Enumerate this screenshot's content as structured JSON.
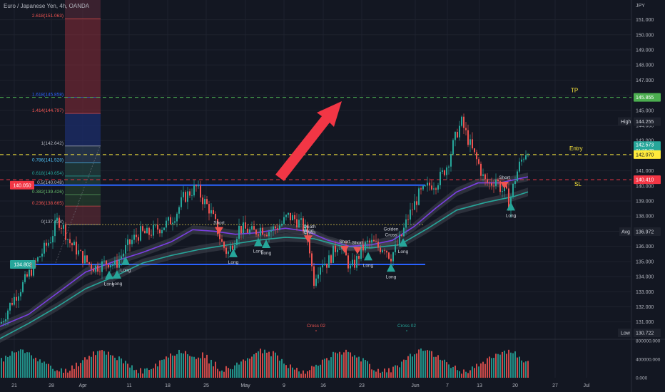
{
  "header": {
    "title": "Euro / Japanese Yen, 4h, OANDA",
    "currency": "JPY"
  },
  "colors": {
    "background": "#131722",
    "grid": "#1e222d",
    "up": "#26a69a",
    "down": "#ef5350",
    "blue_line": "#2962ff",
    "fast_ma": "#26a69a",
    "slow_ma": "#7b3fe4",
    "tp": "#4caf50",
    "entry": "#ffeb3b",
    "sl": "#f23645",
    "arrow": "#f23645"
  },
  "chart_data": {
    "type": "line",
    "title": "Euro / Japanese Yen, 4h, OANDA",
    "xlabel": "",
    "ylabel": "",
    "y_unit": "JPY",
    "ylim": [
      129.9,
      152.3
    ],
    "grid": true,
    "x_ticks": [
      "21",
      "28",
      "Apr",
      "11",
      "18",
      "25",
      "May",
      "9",
      "16",
      "23",
      "Jun",
      "7",
      "13",
      "20",
      "27",
      "Jul"
    ],
    "y_ticks": [
      "151.000",
      "150.000",
      "149.000",
      "148.000",
      "147.000",
      "146.000",
      "145.000",
      "144.000",
      "143.000",
      "142.000",
      "141.000",
      "140.000",
      "139.000",
      "138.000",
      "137.000",
      "136.000",
      "135.000",
      "134.000",
      "133.000",
      "132.000",
      "131.000"
    ],
    "price_path": [
      [
        0,
        130.9
      ],
      [
        15,
        132.3
      ],
      [
        30,
        133.4
      ],
      [
        45,
        134.6
      ],
      [
        58,
        135.6
      ],
      [
        70,
        136.5
      ],
      [
        80,
        137.8
      ],
      [
        88,
        137.2
      ],
      [
        96,
        136.3
      ],
      [
        104,
        135.9
      ],
      [
        112,
        135.4
      ],
      [
        122,
        134.9
      ],
      [
        132,
        134.6
      ],
      [
        142,
        134.8
      ],
      [
        152,
        135.0
      ],
      [
        160,
        134.7
      ],
      [
        168,
        135.3
      ],
      [
        176,
        135.9
      ],
      [
        186,
        136.5
      ],
      [
        196,
        136.9
      ],
      [
        206,
        136.8
      ],
      [
        216,
        137.1
      ],
      [
        226,
        137.3
      ],
      [
        236,
        137.6
      ],
      [
        246,
        138.2
      ],
      [
        256,
        139.2
      ],
      [
        266,
        139.6
      ],
      [
        274,
        139.9
      ],
      [
        282,
        139.2
      ],
      [
        292,
        138.5
      ],
      [
        300,
        137.6
      ],
      [
        310,
        136.2
      ],
      [
        318,
        135.5
      ],
      [
        326,
        136.3
      ],
      [
        334,
        137.2
      ],
      [
        344,
        137.1
      ],
      [
        354,
        136.9
      ],
      [
        364,
        137.2
      ],
      [
        374,
        137.0
      ],
      [
        384,
        137.2
      ],
      [
        394,
        137.5
      ],
      [
        402,
        138.0
      ],
      [
        412,
        137.8
      ],
      [
        420,
        137.5
      ],
      [
        428,
        137.0
      ],
      [
        434,
        135.6
      ],
      [
        438,
        133.6
      ],
      [
        443,
        134.4
      ],
      [
        450,
        135.0
      ],
      [
        458,
        134.9
      ],
      [
        466,
        135.6
      ],
      [
        474,
        136.3
      ],
      [
        482,
        135.5
      ],
      [
        490,
        134.5
      ],
      [
        498,
        135.0
      ],
      [
        506,
        135.8
      ],
      [
        514,
        136.2
      ],
      [
        522,
        136.2
      ],
      [
        530,
        135.9
      ],
      [
        538,
        136.0
      ],
      [
        546,
        135.3
      ],
      [
        554,
        135.9
      ],
      [
        562,
        136.7
      ],
      [
        570,
        137.8
      ],
      [
        578,
        138.6
      ],
      [
        586,
        139.4
      ],
      [
        594,
        139.7
      ],
      [
        602,
        140.1
      ],
      [
        610,
        140.2
      ],
      [
        618,
        140.7
      ],
      [
        626,
        141.4
      ],
      [
        634,
        142.7
      ],
      [
        640,
        143.6
      ],
      [
        646,
        144.2
      ],
      [
        654,
        143.2
      ],
      [
        662,
        142.2
      ],
      [
        670,
        141.4
      ],
      [
        678,
        140.3
      ],
      [
        686,
        140.1
      ],
      [
        694,
        140.5
      ],
      [
        702,
        139.7
      ],
      [
        708,
        139.6
      ],
      [
        712,
        138.8
      ],
      [
        716,
        139.5
      ],
      [
        722,
        140.7
      ],
      [
        728,
        141.5
      ],
      [
        734,
        142.1
      ],
      [
        740,
        142.57
      ]
    ],
    "fast_ma_path": [
      [
        0,
        129.9
      ],
      [
        40,
        130.9
      ],
      [
        80,
        132.0
      ],
      [
        120,
        133.2
      ],
      [
        160,
        134.0
      ],
      [
        200,
        134.9
      ],
      [
        240,
        135.4
      ],
      [
        280,
        135.8
      ],
      [
        320,
        136.1
      ],
      [
        360,
        136.4
      ],
      [
        400,
        136.6
      ],
      [
        440,
        136.5
      ],
      [
        480,
        136.0
      ],
      [
        520,
        135.9
      ],
      [
        560,
        136.1
      ],
      [
        600,
        137.2
      ],
      [
        640,
        138.4
      ],
      [
        680,
        138.9
      ],
      [
        720,
        139.3
      ],
      [
        740,
        139.6
      ]
    ],
    "slow_ma_path": [
      [
        0,
        130.7
      ],
      [
        40,
        131.5
      ],
      [
        80,
        132.9
      ],
      [
        120,
        134.3
      ],
      [
        160,
        135.0
      ],
      [
        200,
        135.6
      ],
      [
        240,
        136.3
      ],
      [
        270,
        137.1
      ],
      [
        300,
        137.0
      ],
      [
        330,
        136.8
      ],
      [
        360,
        136.9
      ],
      [
        400,
        137.2
      ],
      [
        430,
        137.0
      ],
      [
        460,
        136.4
      ],
      [
        490,
        136.0
      ],
      [
        520,
        136.1
      ],
      [
        550,
        136.4
      ],
      [
        580,
        137.3
      ],
      [
        610,
        138.5
      ],
      [
        640,
        139.6
      ],
      [
        670,
        140.2
      ],
      [
        700,
        140.2
      ],
      [
        740,
        140.6
      ]
    ],
    "volume_ylim": [
      0,
      800000
    ],
    "volume_ticks": [
      "800000.000",
      "400000.000",
      "0.000"
    ],
    "fib_levels": [
      {
        "label": "2.618(151.063)",
        "price": 151.063,
        "color": "#ef5350"
      },
      {
        "label": "1.618(145.858)",
        "price": 145.858,
        "color": "#2962ff"
      },
      {
        "label": "1.414(144.797)",
        "price": 144.797,
        "color": "#ef5350"
      },
      {
        "label": "1(142.642)",
        "price": 142.642,
        "color": "#b2b5be"
      },
      {
        "label": "0.786(141.528)",
        "price": 141.528,
        "color": "#4fc3f7"
      },
      {
        "label": "0.618(140.654)",
        "price": 140.654,
        "color": "#26a69a"
      },
      {
        "label": "0.5(140.048)",
        "price": 140.048,
        "color": "#b2b5be"
      },
      {
        "label": "0.382(139.426)",
        "price": 139.426,
        "color": "#66bb6a"
      },
      {
        "label": "0.236(138.665)",
        "price": 138.665,
        "color": "#ef5350"
      },
      {
        "label": "0(137.438)",
        "price": 137.438,
        "color": "#b2b5be"
      }
    ],
    "horizontal_lines": [
      {
        "name": "TP",
        "price": 145.855,
        "label": "TP",
        "value": "145.855"
      },
      {
        "name": "Entry",
        "price": 142.07,
        "label": "Entry",
        "value": "142.070"
      },
      {
        "name": "SL",
        "price": 140.41,
        "label": "SL",
        "value": "140.410"
      },
      {
        "name": "resistance",
        "price": 140.05,
        "value": "140.050"
      },
      {
        "name": "support",
        "price": 134.802,
        "value": "134.802"
      }
    ],
    "price_labels": {
      "high_label": "High",
      "high": "144.255",
      "current": "142.573",
      "countdown": "01:29:29",
      "avg_label": "Avg",
      "avg": "136.972",
      "low_label": "Low",
      "low": "130.722"
    },
    "signals": [
      {
        "text": "Long",
        "x": 153,
        "dir": "long"
      },
      {
        "text": "Long",
        "x": 164,
        "dir": "long"
      },
      {
        "text": "Long",
        "x": 176,
        "dir": "long"
      },
      {
        "text": "Short",
        "x": 307,
        "dir": "short"
      },
      {
        "text": "Long",
        "x": 327,
        "dir": "long"
      },
      {
        "text": "Long",
        "x": 362,
        "dir": "long"
      },
      {
        "text": "Long",
        "x": 373,
        "dir": "long"
      },
      {
        "text": "Short",
        "x": 432,
        "dir": "short"
      },
      {
        "text": "Death Cross",
        "x": 434,
        "dir": "cross"
      },
      {
        "text": "Short",
        "x": 483,
        "dir": "short"
      },
      {
        "text": "Short",
        "x": 501,
        "dir": "short"
      },
      {
        "text": "Long",
        "x": 516,
        "dir": "long"
      },
      {
        "text": "Golden Cross",
        "x": 548,
        "dir": "cross"
      },
      {
        "text": "Long",
        "x": 548,
        "dir": "long"
      },
      {
        "text": "Long",
        "x": 565,
        "dir": "long"
      },
      {
        "text": "Short",
        "x": 707,
        "dir": "short"
      },
      {
        "text": "Long",
        "x": 716,
        "dir": "long"
      }
    ],
    "bottom_markers": [
      {
        "text": "Cross 02",
        "x": 443,
        "color": "#ef5350"
      },
      {
        "text": "Cross 02",
        "x": 570,
        "color": "#26a69a"
      }
    ]
  }
}
